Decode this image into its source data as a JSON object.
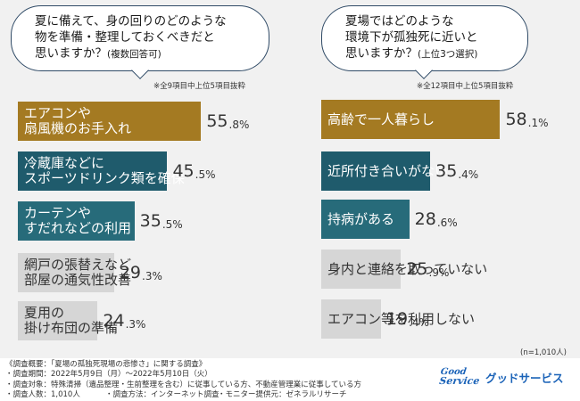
{
  "left_question": {
    "line1": "夏に備えて、身の回りのどのような",
    "line2": "物を準備・整理しておくべきだと",
    "line3_main": "思いますか？",
    "line3_sub": "(複数回答可)",
    "note": "※全9項目中上位5項目抜粋"
  },
  "right_question": {
    "line1": "夏場ではどのような",
    "line2": "環境下が孤独死に近いと",
    "line3_main": "思いますか？",
    "line3_sub": "(上位3つ選択)",
    "note": "※全12項目中上位5項目抜粋"
  },
  "chart_data": [
    {
      "type": "bar",
      "orientation": "horizontal",
      "title": "夏に備えて、身の回りのどのような物を準備・整理しておくべきだと思いますか？(複数回答可)",
      "unit": "%",
      "categories": [
        {
          "line1": "エアコンや",
          "line2": "扇風機のお手入れ"
        },
        {
          "line1": "冷蔵庫などに",
          "line2": "スポーツドリンク類を確保"
        },
        {
          "line1": "カーテンや",
          "line2": "すだれなどの利用"
        },
        {
          "line1": "網戸の張替えなど",
          "line2": "部屋の通気性改善"
        },
        {
          "line1": "夏用の",
          "line2": "掛け布団の準備"
        }
      ],
      "values": [
        55.8,
        45.5,
        35.5,
        29.3,
        24.3
      ],
      "labels": [
        {
          "int": "55",
          "dec": ".8%"
        },
        {
          "int": "45",
          "dec": ".5%"
        },
        {
          "int": "35",
          "dec": ".5%"
        },
        {
          "int": "29",
          "dec": ".3%"
        },
        {
          "int": "24",
          "dec": ".3%"
        }
      ],
      "colors": [
        "#a47a22",
        "#1f5b6c",
        "#276b7a",
        "#d6d6d6",
        "#d6d6d6"
      ]
    },
    {
      "type": "bar",
      "orientation": "horizontal",
      "title": "夏場ではどのような環境下が孤独死に近いと思いますか？(上位3つ選択)",
      "unit": "%",
      "categories": [
        "高齢で一人暮らし",
        "近所付き合いがない",
        "持病がある",
        "身内と連絡を取っていない",
        "エアコン等を利用しない"
      ],
      "values": [
        58.1,
        35.4,
        28.6,
        25.9,
        19.4
      ],
      "labels": [
        {
          "int": "58",
          "dec": ".1%"
        },
        {
          "int": "35",
          "dec": ".4%"
        },
        {
          "int": "28",
          "dec": ".6%"
        },
        {
          "int": "25",
          "dec": ".9%"
        },
        {
          "int": "19",
          "dec": ".4%"
        }
      ],
      "colors": [
        "#a47a22",
        "#1f5b6c",
        "#276b7a",
        "#d6d6d6",
        "#d6d6d6"
      ]
    }
  ],
  "sample_note": "(n=1,010人)",
  "footer": {
    "title": "《調査概要：「夏場の孤独死現場の悲惨さ」に関する調査》",
    "period": "・調査期間：2022年5月9日（月）～2022年5月10日（火）",
    "target": "・調査対象：特殊清掃（遺品整理・生前整理を含む）に従事している方、不動産管理業に従事している方",
    "count": "・調査人数：1,010人",
    "method": "・調査方法：インターネット調査",
    "provider": "・モニター提供元：ゼネラルリサーチ"
  },
  "logo": {
    "mark_line1": "Good",
    "mark_line2": "Service",
    "text": "グッドサービス",
    "color": "#1b63b8"
  }
}
